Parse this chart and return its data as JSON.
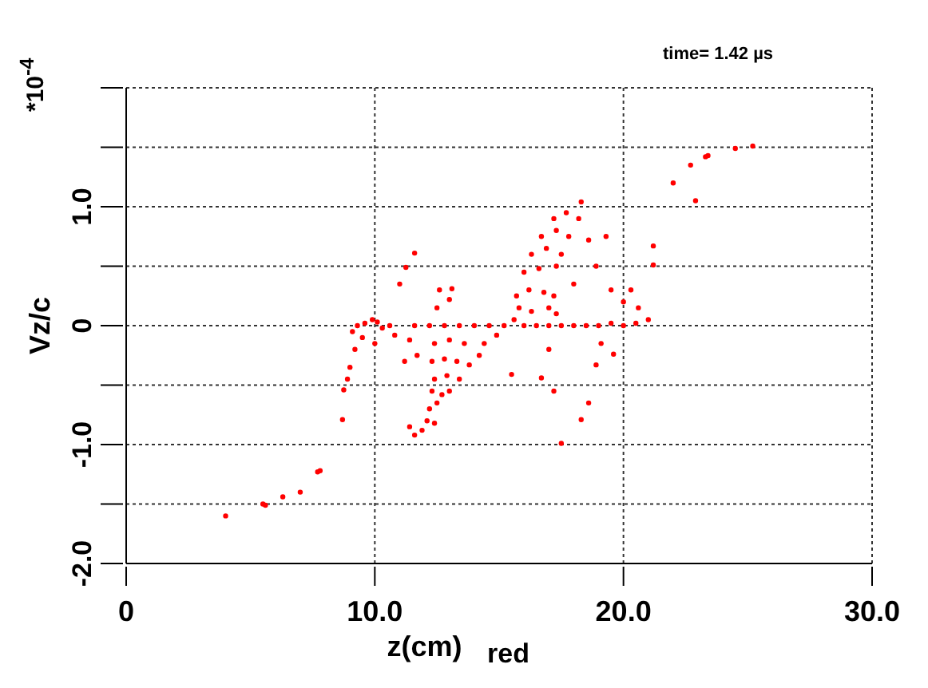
{
  "chart_data": {
    "type": "scatter",
    "xlabel": "z(cm)",
    "ylabel": "Vz/c",
    "annotations": [
      "*10$^{-4}$",
      "red",
      "time=  1.42 µs"
    ],
    "xlim": [
      0,
      30
    ],
    "xticks": [
      0,
      {
        "value": 10,
        "label": "10.0"
      },
      {
        "value": 20,
        "label": "20.0"
      },
      {
        "value": 30,
        "label": "30.0"
      }
    ],
    "ylim": [
      -2,
      2
    ],
    "yticks": [
      {
        "value": -2,
        "label": "-2.0"
      },
      {
        "value": -1.5,
        "label": null
      },
      {
        "value": -1,
        "label": "-1.0"
      },
      {
        "value": -0.5,
        "label": null
      },
      0,
      {
        "value": 0.5,
        "label": null
      },
      {
        "value": 1,
        "label": "1.0"
      },
      {
        "value": 1.5,
        "label": null
      },
      {
        "value": 2,
        "label": null
      }
    ],
    "grid": true,
    "marker": "circle",
    "series": [
      {
        "color": "#ff0000",
        "x": [
          4.0,
          5.5,
          5.6,
          6.3,
          7.0,
          7.7,
          7.8,
          8.7,
          8.75,
          8.9,
          9.0,
          9.2,
          9.1,
          9.3,
          9.6,
          9.9,
          10.1,
          10.3,
          10.6,
          9.5,
          10.0,
          10.8,
          11.0,
          11.25,
          11.6,
          11.2,
          11.4,
          11.6,
          11.7,
          11.4,
          11.6,
          11.9,
          12.1,
          12.4,
          12.2,
          12.5,
          12.3,
          12.7,
          13.0,
          12.4,
          12.9,
          13.4,
          12.3,
          12.8,
          13.3,
          13.8,
          14.2,
          12.4,
          13.0,
          13.6,
          14.4,
          14.9,
          12.2,
          12.8,
          13.4,
          14.0,
          14.6,
          15.2,
          12.5,
          12.6,
          13.1,
          13.0,
          15.6,
          16.0,
          16.5,
          17.0,
          17.5,
          18.0,
          18.5,
          19.0,
          19.5,
          20.0,
          20.5,
          21.0,
          15.8,
          16.3,
          17.0,
          17.3,
          15.7,
          16.2,
          16.8,
          17.2,
          16.0,
          16.6,
          17.3,
          16.3,
          16.9,
          17.5,
          16.7,
          17.3,
          17.8,
          17.2,
          17.7,
          18.2,
          18.3,
          18.6,
          19.3,
          18.9,
          18.0,
          19.5,
          20.3,
          20.6,
          20.0,
          17.0,
          16.7,
          15.5,
          17.2,
          17.5,
          18.3,
          18.6,
          18.9,
          19.6,
          19.1,
          21.2,
          21.2,
          22.0,
          22.7,
          22.9,
          23.3,
          23.4,
          24.5,
          25.2
        ],
        "values": [
          -1.6,
          -1.5,
          -1.51,
          -1.44,
          -1.4,
          -1.23,
          -1.22,
          -0.79,
          -0.54,
          -0.45,
          -0.35,
          -0.2,
          -0.05,
          0.0,
          0.02,
          0.05,
          0.03,
          -0.02,
          0.0,
          -0.1,
          -0.15,
          -0.08,
          0.35,
          0.49,
          0.61,
          -0.3,
          -0.12,
          0.0,
          -0.25,
          -0.85,
          -0.92,
          -0.88,
          -0.8,
          -0.82,
          -0.7,
          -0.65,
          -0.55,
          -0.58,
          -0.55,
          -0.45,
          -0.42,
          -0.45,
          -0.3,
          -0.28,
          -0.3,
          -0.33,
          -0.25,
          -0.15,
          -0.12,
          -0.15,
          -0.15,
          -0.08,
          0.0,
          0.0,
          0.0,
          0.0,
          0.0,
          0.0,
          0.15,
          0.3,
          0.31,
          0.22,
          0.05,
          0.0,
          0.0,
          0.0,
          0.0,
          0.0,
          0.0,
          0.0,
          0.02,
          0.0,
          0.02,
          0.05,
          0.15,
          0.12,
          0.15,
          0.1,
          0.25,
          0.3,
          0.28,
          0.25,
          0.45,
          0.48,
          0.5,
          0.6,
          0.65,
          0.6,
          0.75,
          0.8,
          0.75,
          0.9,
          0.95,
          0.9,
          1.04,
          0.72,
          0.75,
          0.5,
          0.35,
          0.3,
          0.3,
          0.15,
          0.2,
          -0.2,
          -0.44,
          -0.41,
          -0.55,
          -0.99,
          -0.79,
          -0.65,
          -0.33,
          -0.24,
          -0.15,
          0.67,
          0.51,
          1.2,
          1.35,
          1.05,
          1.42,
          1.43,
          1.49,
          1.51
        ]
      }
    ]
  }
}
